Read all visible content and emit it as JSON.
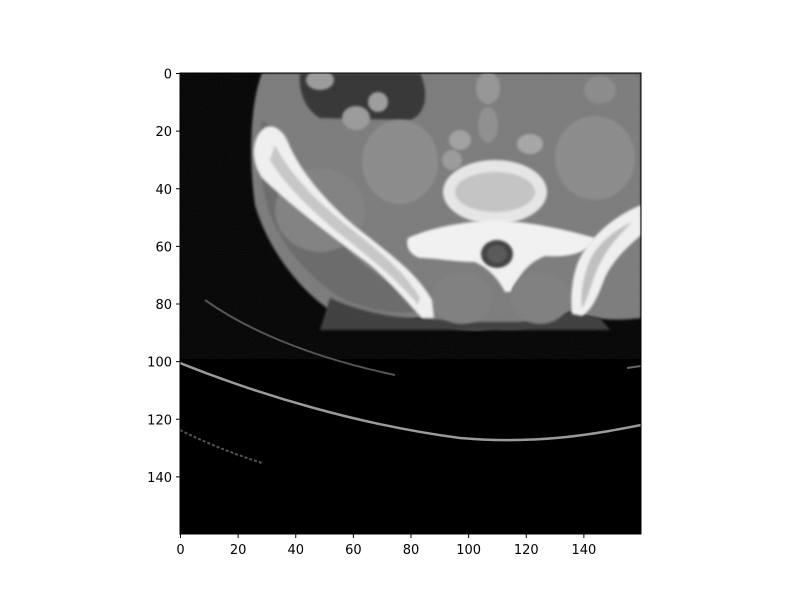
{
  "chart_data": {
    "type": "heatmap",
    "title": "",
    "xlabel": "",
    "ylabel": "",
    "xlim": [
      0,
      160
    ],
    "ylim": [
      160,
      0
    ],
    "x_ticks": [
      0,
      20,
      40,
      60,
      80,
      100,
      120,
      140
    ],
    "y_ticks": [
      0,
      20,
      40,
      60,
      80,
      100,
      120,
      140
    ],
    "x_tick_labels": [
      "0",
      "20",
      "40",
      "60",
      "80",
      "100",
      "120",
      "140"
    ],
    "y_tick_labels": [
      "0",
      "20",
      "40",
      "60",
      "80",
      "100",
      "120",
      "140"
    ],
    "colormap": "gray",
    "grid": false,
    "image_content": "axial CT slice of the pelvis"
  }
}
